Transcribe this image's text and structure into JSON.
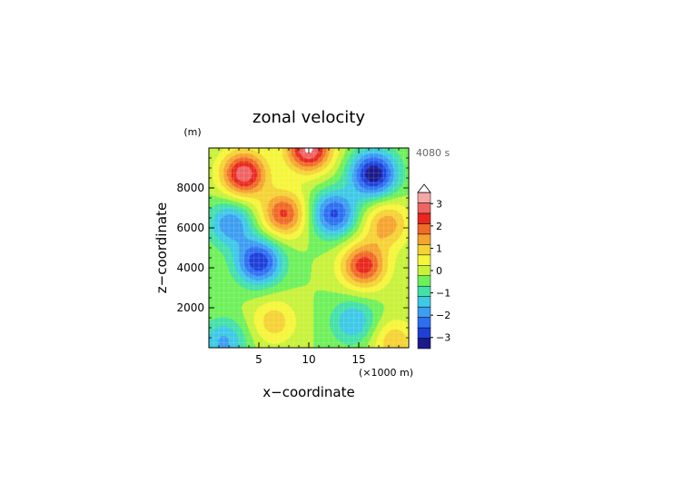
{
  "chart_data": {
    "type": "heatmap",
    "title": "zonal velocity",
    "xlabel": "x−coordinate",
    "ylabel": "z−coordinate",
    "x_units": "(×1000 m)",
    "y_units": "(m)",
    "time_label": "4080 s",
    "xlim": [
      0,
      20
    ],
    "ylim": [
      0,
      10000
    ],
    "x_ticks": [
      5,
      10,
      15
    ],
    "x_tick_labels": [
      "5",
      "10",
      "15"
    ],
    "y_ticks": [
      2000,
      4000,
      6000,
      8000
    ],
    "y_tick_labels": [
      "2000",
      "4000",
      "6000",
      "8000"
    ],
    "colorbar": {
      "ticks": [
        -3,
        -2,
        -1,
        0,
        1,
        2,
        3
      ],
      "tick_labels": [
        "−3",
        "−2",
        "−1",
        "0",
        "1",
        "2",
        "3"
      ],
      "levels": [
        -3.5,
        -3.0,
        -2.5,
        -2.0,
        -1.5,
        -1.0,
        -0.5,
        0.0,
        0.5,
        1.0,
        1.5,
        2.0,
        2.5,
        3.0,
        3.5
      ],
      "colors": [
        "#1a1a8c",
        "#1f3fd9",
        "#2e6ff2",
        "#3d9df2",
        "#3ec9e6",
        "#44e0a8",
        "#6ef05a",
        "#c8f23a",
        "#f5f53a",
        "#f5d235",
        "#f5a430",
        "#f06a28",
        "#e8281e",
        "#f06464",
        "#f5a6a6",
        "#ffffff"
      ],
      "extend": "max"
    },
    "field": {
      "description_of_features": "antisymmetric about x=10: positive (red) jets upper-left and lower-right, negative (blue) mirror",
      "extrema": [
        {
          "x": 3.5,
          "z": 8700,
          "value": 3.4
        },
        {
          "x": 7.5,
          "z": 6700,
          "value": 2.6
        },
        {
          "x": 15.5,
          "z": 4100,
          "value": 2.8
        },
        {
          "x": 17.8,
          "z": 6200,
          "value": 1.8
        },
        {
          "x": 6.5,
          "z": 1300,
          "value": 1.3
        },
        {
          "x": 16.5,
          "z": 8700,
          "value": -3.4
        },
        {
          "x": 12.5,
          "z": 6700,
          "value": -2.6
        },
        {
          "x": 5.0,
          "z": 4300,
          "value": -2.9
        },
        {
          "x": 2.2,
          "z": 6200,
          "value": -1.9
        },
        {
          "x": 14.5,
          "z": 1300,
          "value": -1.5
        },
        {
          "x": 1.5,
          "z": 300,
          "value": -1.6
        },
        {
          "x": 18.5,
          "z": 300,
          "value": 1.4
        },
        {
          "x": 10.0,
          "z": 9950,
          "value": 3.6
        }
      ]
    }
  }
}
